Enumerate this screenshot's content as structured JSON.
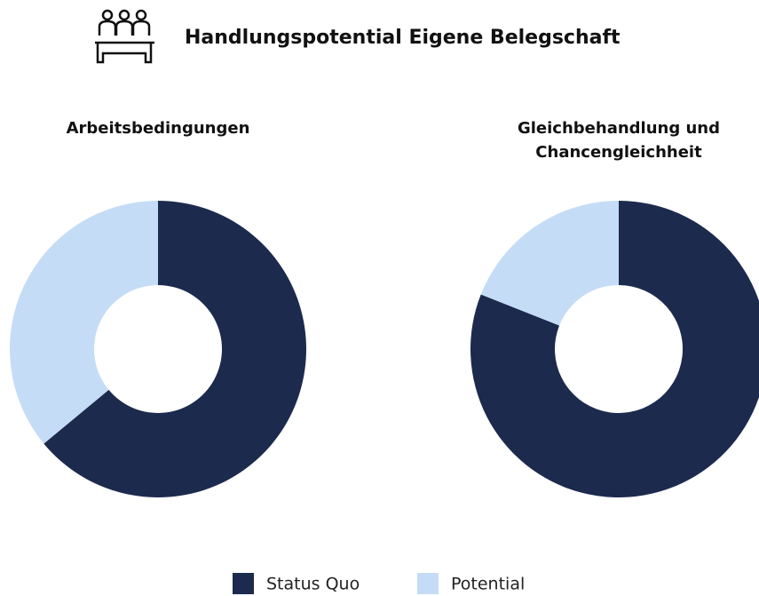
{
  "title": "Handlungspotential Eigene Belegschaft",
  "legend": [
    {
      "name": "Status Quo",
      "color": "#1c2a4e"
    },
    {
      "name": "Potential",
      "color": "#c5dcf6"
    }
  ],
  "chart_data": [
    {
      "type": "donut",
      "title": "Arbeitsbedingungen",
      "values": [
        64,
        36
      ]
    },
    {
      "type": "donut",
      "title": "Gleichbehandlung und Chancengleichheit",
      "values": [
        81,
        19
      ]
    }
  ]
}
